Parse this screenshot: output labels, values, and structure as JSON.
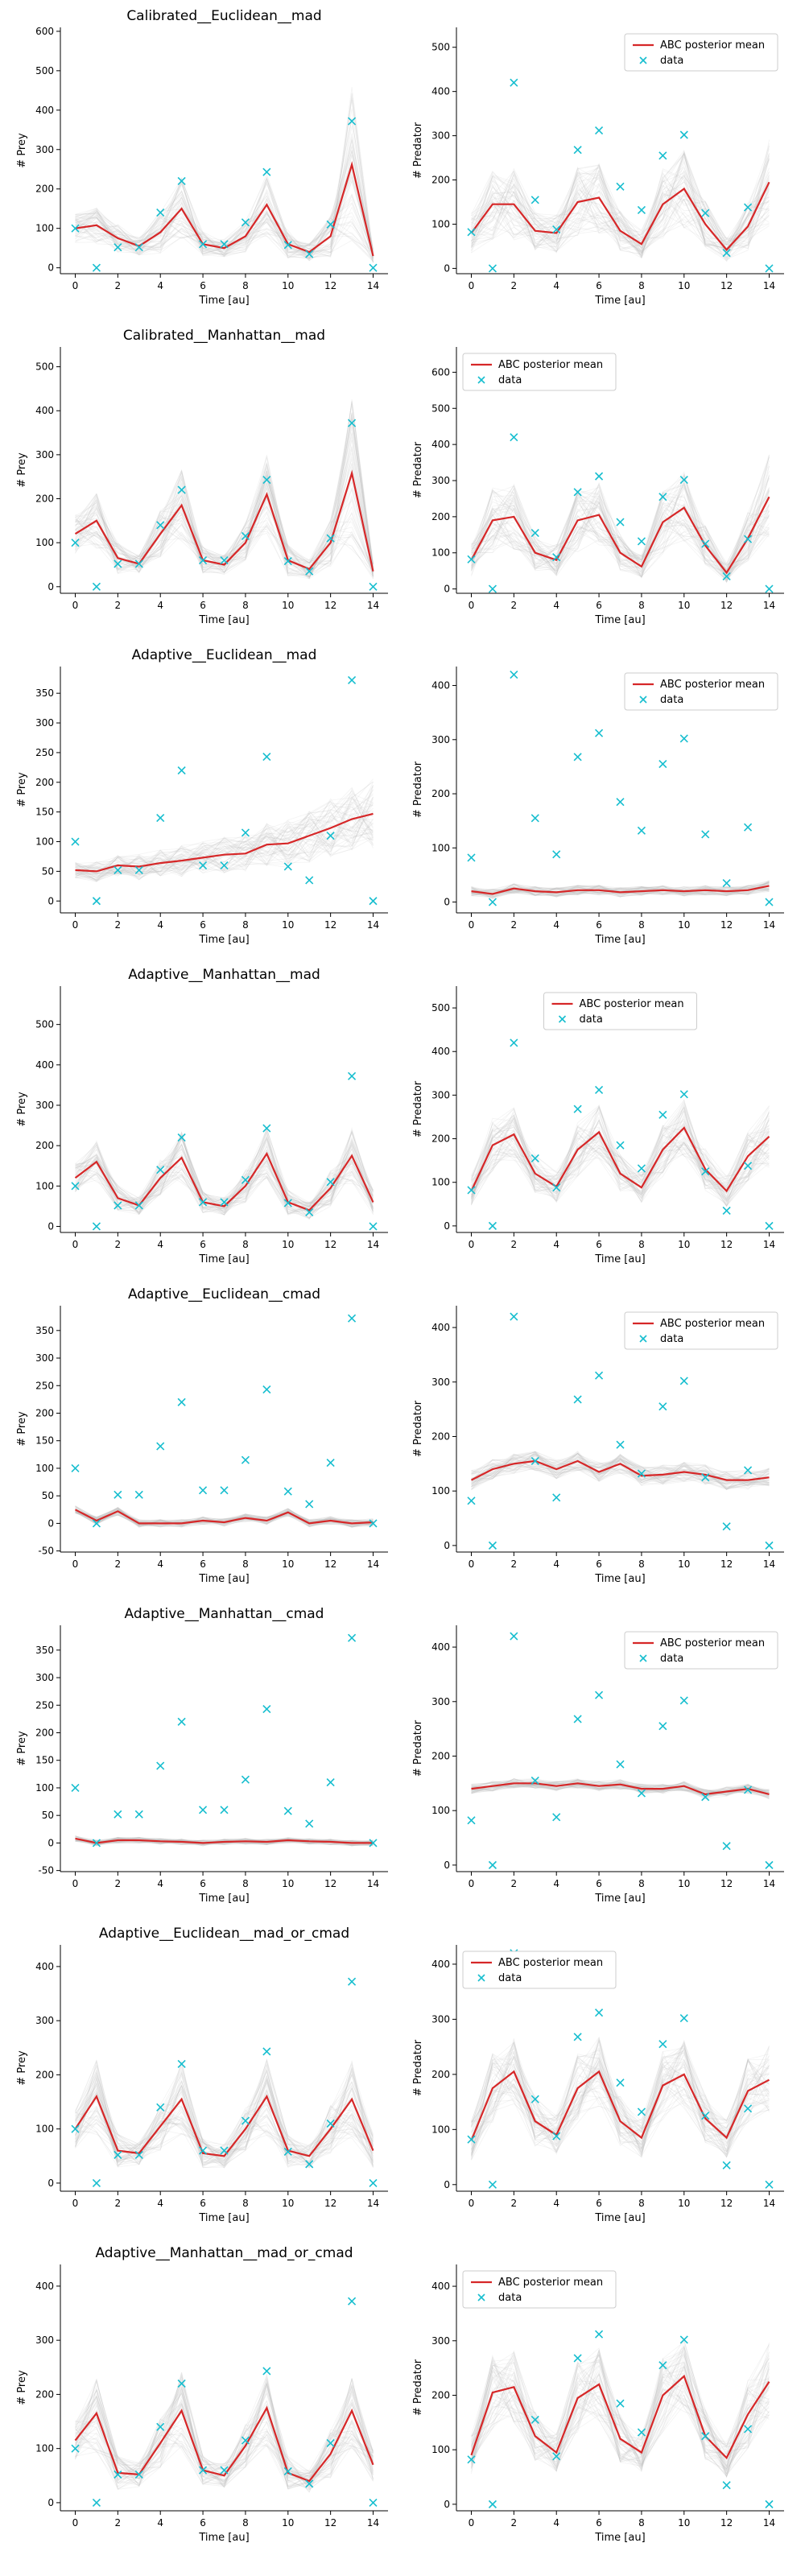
{
  "colors": {
    "mean": "#d62728",
    "data": "#17becf",
    "samples": "#bdbdbd"
  },
  "legend": {
    "mean_label": "ABC posterior mean",
    "data_label": "data"
  },
  "chart_data": {
    "type": "line",
    "xlabel": "Time [au]",
    "ylabel_prey": "# Prey",
    "ylabel_predator": "# Predator",
    "x": [
      0,
      1,
      2,
      3,
      4,
      5,
      6,
      7,
      8,
      9,
      10,
      11,
      12,
      13,
      14
    ],
    "xticks": [
      0,
      2,
      4,
      6,
      8,
      10,
      12,
      14
    ],
    "xlim": [
      -0.7,
      14.7
    ],
    "data_prey": [
      100,
      0,
      52,
      52,
      140,
      220,
      60,
      60,
      115,
      243,
      58,
      35,
      110,
      372,
      0
    ],
    "data_predator": [
      82,
      0,
      420,
      155,
      88,
      268,
      312,
      185,
      132,
      255,
      302,
      125,
      35,
      138,
      0
    ],
    "panels": [
      {
        "row": 0,
        "col": 0,
        "title": "Calibrated__Euclidean__mad",
        "kind": "prey",
        "ylim": [
          -15,
          610
        ],
        "yticks": [
          0,
          100,
          200,
          300,
          400,
          500,
          600
        ],
        "legend": null,
        "mean": [
          100,
          108,
          75,
          55,
          90,
          150,
          60,
          50,
          80,
          160,
          60,
          40,
          80,
          262,
          30
        ],
        "spread": [
          40,
          60,
          40,
          25,
          60,
          90,
          35,
          25,
          45,
          90,
          40,
          25,
          60,
          220,
          20
        ]
      },
      {
        "row": 0,
        "col": 1,
        "title": "",
        "kind": "predator",
        "ylim": [
          -12,
          545
        ],
        "yticks": [
          0,
          100,
          200,
          300,
          400,
          500
        ],
        "legend": "upper-right",
        "mean": [
          80,
          145,
          145,
          85,
          80,
          150,
          160,
          85,
          55,
          145,
          180,
          100,
          42,
          95,
          195
        ],
        "spread": [
          50,
          90,
          90,
          50,
          50,
          90,
          90,
          50,
          35,
          90,
          100,
          60,
          30,
          60,
          110
        ]
      },
      {
        "row": 1,
        "col": 0,
        "title": "Calibrated__Manhattan__mad",
        "kind": "prey",
        "ylim": [
          -15,
          545
        ],
        "yticks": [
          0,
          100,
          200,
          300,
          400,
          500
        ],
        "legend": null,
        "mean": [
          120,
          150,
          65,
          52,
          120,
          185,
          60,
          50,
          100,
          210,
          60,
          40,
          100,
          258,
          35
        ],
        "spread": [
          50,
          70,
          40,
          25,
          60,
          90,
          35,
          25,
          50,
          100,
          40,
          25,
          60,
          200,
          20
        ]
      },
      {
        "row": 1,
        "col": 1,
        "title": "",
        "kind": "predator",
        "ylim": [
          -12,
          670
        ],
        "yticks": [
          0,
          100,
          200,
          300,
          400,
          500,
          600
        ],
        "legend": "upper-left",
        "mean": [
          80,
          190,
          200,
          100,
          80,
          190,
          205,
          100,
          62,
          185,
          225,
          120,
          45,
          140,
          255
        ],
        "spread": [
          50,
          100,
          100,
          55,
          50,
          100,
          100,
          55,
          35,
          100,
          110,
          65,
          30,
          80,
          130
        ]
      },
      {
        "row": 2,
        "col": 0,
        "title": "Adaptive__Euclidean__mad",
        "kind": "prey",
        "ylim": [
          -20,
          395
        ],
        "yticks": [
          0,
          50,
          100,
          150,
          200,
          250,
          300,
          350
        ],
        "legend": null,
        "mean": [
          52,
          50,
          60,
          58,
          64,
          68,
          73,
          78,
          80,
          95,
          97,
          110,
          123,
          138,
          147
        ],
        "spread": [
          15,
          20,
          20,
          25,
          25,
          30,
          30,
          35,
          35,
          40,
          45,
          50,
          55,
          60,
          65
        ]
      },
      {
        "row": 3,
        "col": 0,
        "title": "Adaptive__Manhattan__mad",
        "kind": "prey",
        "ylim": [
          -15,
          595
        ],
        "yticks": [
          0,
          100,
          200,
          300,
          400,
          500
        ],
        "legend": null,
        "mean": [
          120,
          160,
          70,
          52,
          120,
          170,
          60,
          50,
          100,
          180,
          60,
          40,
          95,
          175,
          60
        ],
        "spread": [
          40,
          60,
          35,
          25,
          50,
          70,
          30,
          25,
          45,
          70,
          35,
          25,
          50,
          80,
          35
        ]
      },
      {
        "row": 2,
        "col": 1,
        "title": "",
        "kind": "predator",
        "ylim": [
          -20,
          435
        ],
        "yticks": [
          0,
          100,
          200,
          300,
          400
        ],
        "legend": "upper-right",
        "mean": [
          20,
          15,
          25,
          20,
          18,
          22,
          22,
          18,
          20,
          22,
          20,
          22,
          20,
          22,
          30
        ],
        "spread": [
          10,
          10,
          10,
          10,
          10,
          10,
          10,
          10,
          10,
          10,
          10,
          10,
          10,
          10,
          12
        ]
      },
      {
        "row": 3,
        "col": 1,
        "title": "",
        "kind": "predator",
        "ylim": [
          -15,
          550
        ],
        "yticks": [
          0,
          100,
          200,
          300,
          400,
          500
        ],
        "legend": "upper-center",
        "mean": [
          80,
          185,
          210,
          120,
          90,
          175,
          215,
          120,
          88,
          175,
          225,
          130,
          80,
          160,
          205
        ],
        "spread": [
          40,
          70,
          70,
          50,
          40,
          70,
          70,
          50,
          40,
          70,
          75,
          55,
          40,
          65,
          80
        ]
      },
      {
        "row": 4,
        "col": 0,
        "title": "Adaptive__Euclidean__cmad",
        "kind": "prey",
        "ylim": [
          -52,
          395
        ],
        "yticks": [
          -50,
          0,
          50,
          100,
          150,
          200,
          250,
          300,
          350
        ],
        "legend": null,
        "mean": [
          25,
          5,
          22,
          0,
          0,
          0,
          5,
          2,
          10,
          5,
          20,
          0,
          5,
          0,
          2
        ],
        "spread": [
          8,
          8,
          8,
          8,
          8,
          8,
          8,
          8,
          8,
          8,
          8,
          8,
          8,
          8,
          8
        ]
      },
      {
        "row": 4,
        "col": 1,
        "title": "",
        "kind": "predator",
        "ylim": [
          -12,
          440
        ],
        "yticks": [
          0,
          100,
          200,
          300,
          400
        ],
        "legend": "upper-right",
        "mean": [
          120,
          140,
          150,
          155,
          140,
          155,
          135,
          150,
          128,
          130,
          135,
          130,
          120,
          120,
          125
        ],
        "spread": [
          20,
          20,
          20,
          20,
          20,
          20,
          20,
          20,
          20,
          20,
          20,
          20,
          20,
          20,
          20
        ]
      },
      {
        "row": 5,
        "col": 0,
        "title": "Adaptive__Manhattan__cmad",
        "kind": "prey",
        "ylim": [
          -52,
          395
        ],
        "yticks": [
          -50,
          0,
          50,
          100,
          150,
          200,
          250,
          300,
          350
        ],
        "legend": null,
        "mean": [
          8,
          0,
          5,
          5,
          3,
          2,
          0,
          2,
          3,
          2,
          5,
          3,
          2,
          0,
          0
        ],
        "spread": [
          6,
          6,
          6,
          6,
          6,
          6,
          6,
          6,
          6,
          6,
          6,
          6,
          6,
          6,
          6
        ]
      },
      {
        "row": 5,
        "col": 1,
        "title": "",
        "kind": "predator",
        "ylim": [
          -12,
          440
        ],
        "yticks": [
          0,
          100,
          200,
          300,
          400
        ],
        "legend": "upper-right",
        "mean": [
          140,
          145,
          150,
          150,
          145,
          150,
          145,
          148,
          140,
          140,
          145,
          130,
          135,
          140,
          130
        ],
        "spread": [
          10,
          10,
          10,
          10,
          10,
          10,
          10,
          10,
          10,
          10,
          10,
          10,
          10,
          10,
          10
        ]
      },
      {
        "row": 6,
        "col": 0,
        "title": "Adaptive__Euclidean__mad_or_cmad",
        "kind": "prey",
        "ylim": [
          -15,
          440
        ],
        "yticks": [
          0,
          100,
          200,
          300,
          400
        ],
        "legend": null,
        "mean": [
          100,
          160,
          60,
          55,
          105,
          155,
          55,
          50,
          100,
          160,
          60,
          50,
          100,
          155,
          60
        ],
        "spread": [
          40,
          80,
          35,
          25,
          50,
          80,
          30,
          25,
          45,
          80,
          35,
          25,
          50,
          80,
          35
        ]
      },
      {
        "row": 6,
        "col": 1,
        "title": "",
        "kind": "predator",
        "ylim": [
          -12,
          435
        ],
        "yticks": [
          0,
          100,
          200,
          300,
          400
        ],
        "legend": "upper-left",
        "mean": [
          80,
          175,
          205,
          115,
          90,
          175,
          205,
          115,
          85,
          180,
          200,
          120,
          85,
          170,
          190
        ],
        "spread": [
          40,
          70,
          70,
          50,
          40,
          70,
          70,
          50,
          40,
          70,
          70,
          50,
          40,
          65,
          70
        ]
      },
      {
        "row": 7,
        "col": 0,
        "title": "Adaptive__Manhattan__mad_or_cmad",
        "kind": "prey",
        "ylim": [
          -15,
          440
        ],
        "yticks": [
          0,
          100,
          200,
          300,
          400
        ],
        "legend": null,
        "mean": [
          115,
          165,
          55,
          52,
          110,
          170,
          60,
          50,
          105,
          175,
          55,
          40,
          90,
          170,
          70
        ],
        "spread": [
          40,
          80,
          35,
          25,
          50,
          80,
          30,
          25,
          45,
          80,
          35,
          25,
          50,
          80,
          35
        ]
      },
      {
        "row": 7,
        "col": 1,
        "title": "",
        "kind": "predator",
        "ylim": [
          -12,
          440
        ],
        "yticks": [
          0,
          100,
          200,
          300,
          400
        ],
        "legend": "upper-left",
        "mean": [
          90,
          205,
          215,
          125,
          95,
          195,
          220,
          120,
          95,
          200,
          235,
          125,
          85,
          165,
          225
        ],
        "spread": [
          40,
          75,
          75,
          50,
          40,
          75,
          75,
          50,
          40,
          75,
          80,
          55,
          40,
          70,
          80
        ]
      }
    ]
  }
}
